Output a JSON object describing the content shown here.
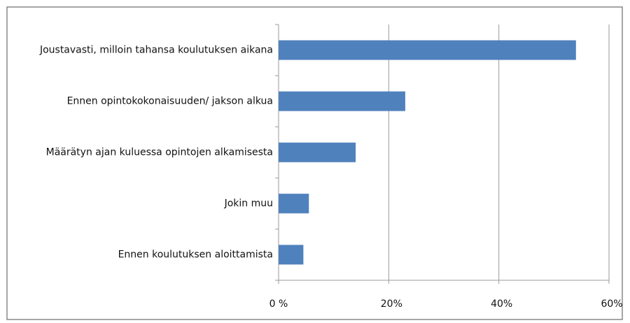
{
  "chart_data": {
    "type": "barh",
    "categories": [
      "Joustavasti, milloin tahansa koulutuksen aikana",
      "Ennen opintokokonaisuuden/ jakson alkua",
      "Määrätyn ajan kuluessa opintojen alkamisesta",
      "Jokin muu",
      "Ennen koulutuksen aloittamista"
    ],
    "values": [
      54,
      23,
      14,
      5.5,
      4.5
    ],
    "color": "#4f81bd",
    "xlim": [
      0,
      60
    ],
    "xticks": [
      {
        "value": 0,
        "label": "0 %"
      },
      {
        "value": 20,
        "label": "20%"
      },
      {
        "value": 40,
        "label": "40%"
      },
      {
        "value": 60,
        "label": "60%"
      }
    ],
    "grid": true
  }
}
